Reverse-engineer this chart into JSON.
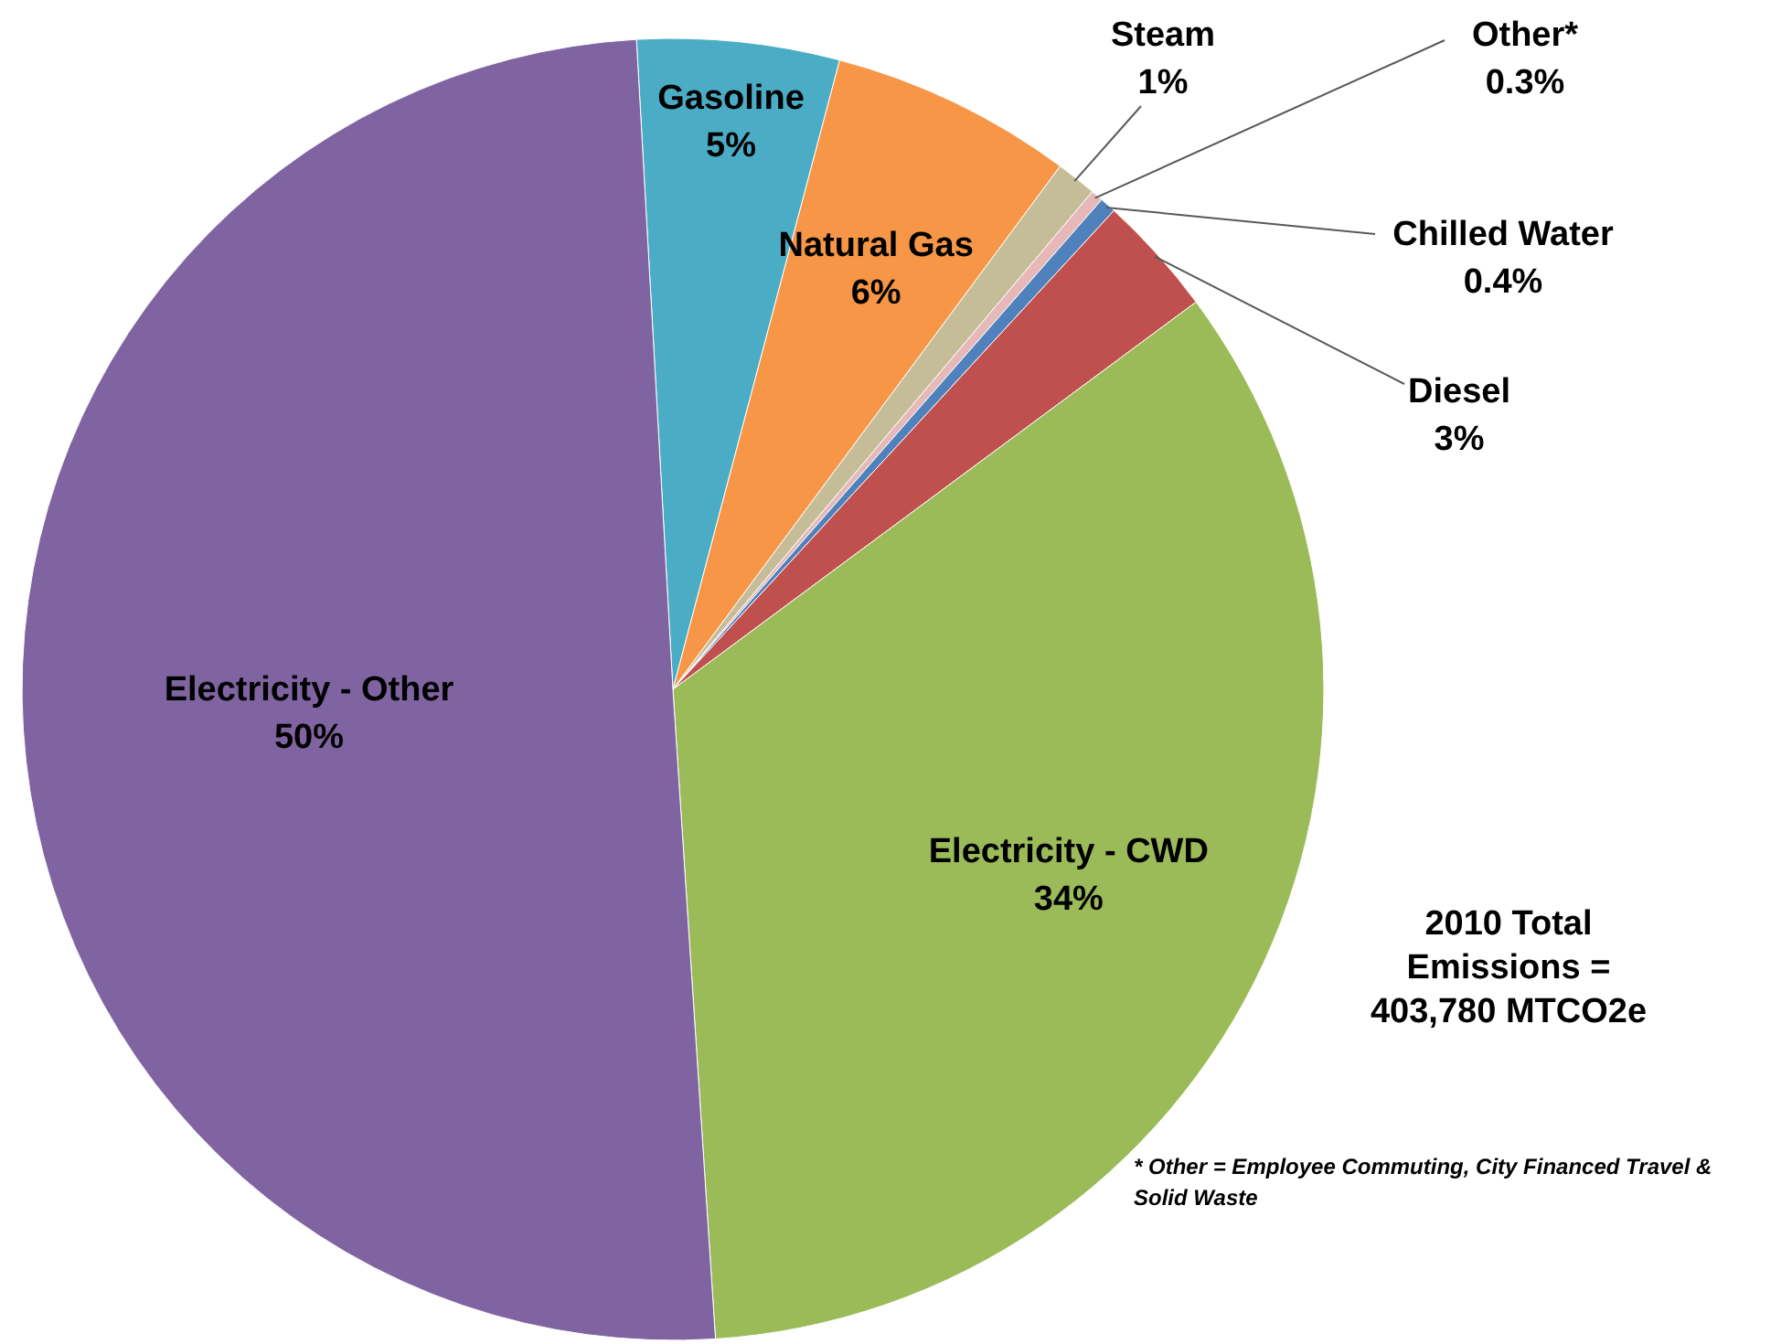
{
  "chart_data": {
    "type": "pie",
    "categories": [
      "Gasoline",
      "Natural Gas",
      "Steam",
      "Other*",
      "Chilled Water",
      "Diesel",
      "Electricity - CWD",
      "Electricity - Other"
    ],
    "values": [
      5,
      6,
      1,
      0.3,
      0.4,
      3,
      34,
      50
    ],
    "value_labels": [
      "5%",
      "6%",
      "1%",
      "0.3%",
      "0.4%",
      "3%",
      "34%",
      "50%"
    ],
    "colors": [
      "#4bacc6",
      "#f79646",
      "#c4bd97",
      "#e6b9b8",
      "#4f81bd",
      "#c0504d",
      "#9bbb59",
      "#8064a2"
    ],
    "annotations": [
      "2010 Total Emissions = 403,780 MTCO2e",
      "* Other = Employee Commuting, City Financed Travel  & Solid Waste"
    ]
  }
}
